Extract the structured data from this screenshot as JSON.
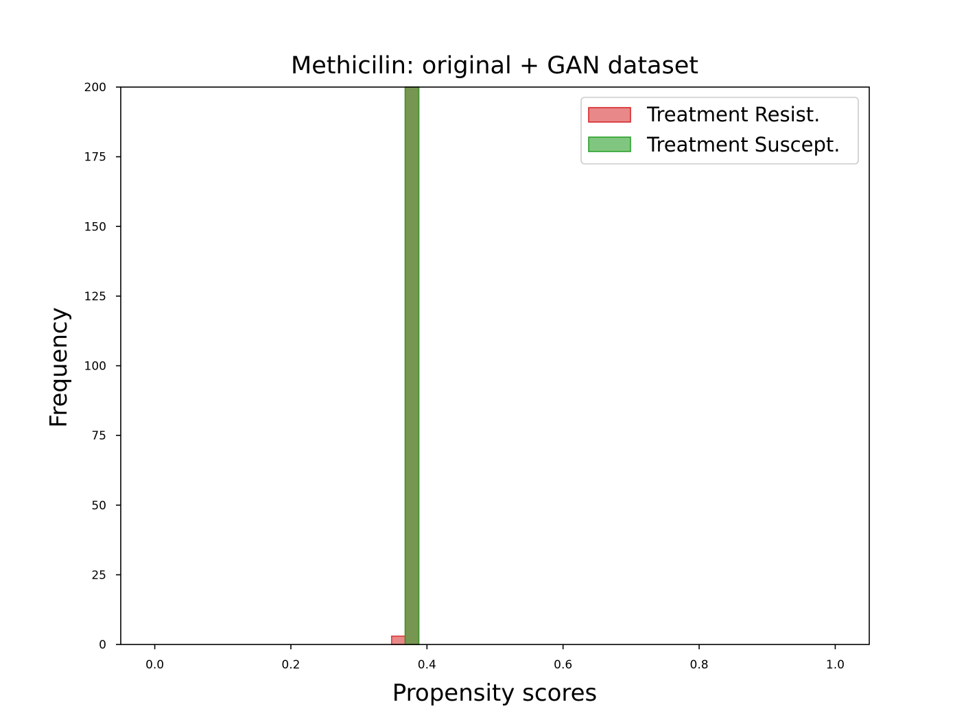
{
  "chart_data": {
    "type": "bar",
    "title": "Methicilin: original + GAN dataset",
    "xlabel": "Propensity scores",
    "ylabel": "Frequency",
    "xlim": [
      -0.05,
      1.05
    ],
    "ylim": [
      0,
      200
    ],
    "xticks": [
      "0.0",
      "0.2",
      "0.4",
      "0.6",
      "0.8",
      "1.0"
    ],
    "yticks": [
      "0",
      "25",
      "50",
      "75",
      "100",
      "125",
      "150",
      "175",
      "200"
    ],
    "grid": false,
    "legend_position": "upper-right",
    "bin_width": 0.02,
    "series": [
      {
        "name": "Treatment Resist.",
        "color": "#d62728",
        "alpha": 0.55,
        "bins": [
          {
            "x0": 0.348,
            "x1": 0.368,
            "count": 3
          },
          {
            "x0": 0.368,
            "x1": 0.388,
            "count": 200
          }
        ]
      },
      {
        "name": "Treatment Suscept.",
        "color": "#2ca02c",
        "alpha": 0.6,
        "bins": [
          {
            "x0": 0.368,
            "x1": 0.388,
            "count": 200
          }
        ]
      }
    ]
  }
}
